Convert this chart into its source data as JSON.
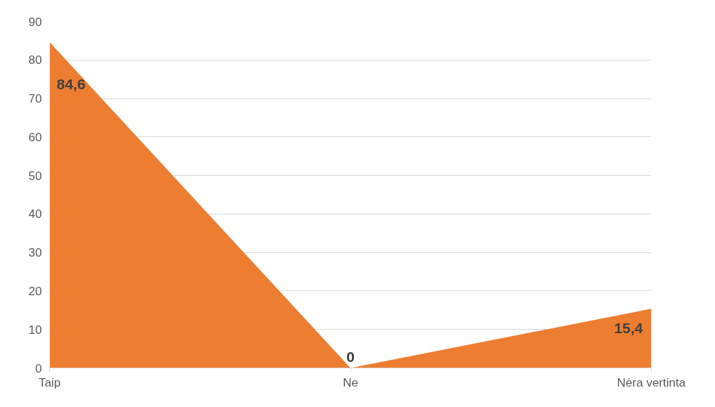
{
  "chart_data": {
    "type": "area",
    "categories": [
      "Taip",
      "Ne",
      "Nėra vertinta"
    ],
    "values": [
      84.6,
      0,
      15.4
    ],
    "value_labels": [
      "84,6",
      "0",
      "15,4"
    ],
    "color": "#ed7d31",
    "ylim": [
      0,
      90
    ],
    "yticks": [
      0,
      10,
      20,
      30,
      40,
      50,
      60,
      70,
      80,
      90
    ],
    "grid": "y"
  }
}
